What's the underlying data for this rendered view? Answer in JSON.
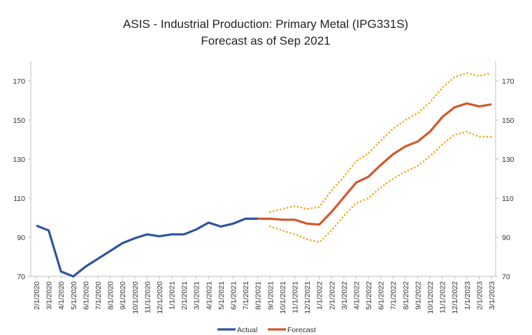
{
  "chart_data": {
    "type": "line",
    "title": "ASIS - Industrial Production: Primary Metal (IPG331S)",
    "subtitle": "Forecast as of Sep 2021",
    "xlabel": "",
    "ylabel": "",
    "ylim": [
      70,
      180
    ],
    "yticks": [
      70,
      90,
      110,
      130,
      150,
      170
    ],
    "grid": false,
    "dual_y_axis": true,
    "legend_position": "bottom",
    "categories": [
      "2/1/2020",
      "3/1/2020",
      "4/1/2020",
      "5/1/2020",
      "6/1/2020",
      "7/1/2020",
      "8/1/2020",
      "9/1/2020",
      "10/1/2020",
      "11/1/2020",
      "12/1/2020",
      "1/1/2021",
      "2/1/2021",
      "3/1/2021",
      "4/1/2021",
      "5/1/2021",
      "6/1/2021",
      "7/1/2021",
      "8/1/2021",
      "9/1/2021",
      "10/1/2021",
      "11/1/2021",
      "12/1/2021",
      "1/1/2022",
      "2/1/2022",
      "3/1/2022",
      "4/1/2022",
      "5/1/2022",
      "6/1/2022",
      "7/1/2022",
      "8/1/2022",
      "9/1/2022",
      "10/1/2022",
      "11/1/2022",
      "12/1/2022",
      "1/1/2023",
      "2/1/2023",
      "3/1/2023"
    ],
    "series": [
      {
        "name": "Actual",
        "color": "#2e54a0",
        "style": "solid",
        "values": [
          96,
          93.5,
          72.5,
          70,
          75,
          79,
          83,
          87,
          89.5,
          91.5,
          90.5,
          91.5,
          91.5,
          94,
          97.5,
          95.5,
          97,
          99.5,
          99.5,
          null,
          null,
          null,
          null,
          null,
          null,
          null,
          null,
          null,
          null,
          null,
          null,
          null,
          null,
          null,
          null,
          null,
          null,
          null
        ]
      },
      {
        "name": "Forecast",
        "color": "#d4572a",
        "style": "solid",
        "values": [
          null,
          null,
          null,
          null,
          null,
          null,
          null,
          null,
          null,
          null,
          null,
          null,
          null,
          null,
          null,
          null,
          null,
          null,
          99.5,
          99.5,
          99,
          99,
          97,
          96.5,
          103,
          110.5,
          118,
          121,
          127,
          132.5,
          136.5,
          139,
          144,
          151.5,
          156.5,
          158.5,
          157,
          158
        ]
      },
      {
        "name": "",
        "color": "#f2a81d",
        "style": "dotted",
        "values": [
          null,
          null,
          null,
          null,
          null,
          null,
          null,
          null,
          null,
          null,
          null,
          null,
          null,
          null,
          null,
          null,
          null,
          null,
          null,
          103,
          104.5,
          106,
          104.5,
          105.5,
          114,
          121,
          129,
          133,
          139.5,
          145.5,
          150,
          153.5,
          159,
          166.5,
          172,
          174,
          172.5,
          174
        ]
      },
      {
        "name": "",
        "color": "#f2a81d",
        "style": "dotted",
        "values": [
          null,
          null,
          null,
          null,
          null,
          null,
          null,
          null,
          null,
          null,
          null,
          null,
          null,
          null,
          null,
          null,
          null,
          null,
          null,
          95.5,
          93.5,
          91.5,
          89,
          87.5,
          93.5,
          101,
          107.5,
          110,
          115.5,
          120,
          123.5,
          126.5,
          131.5,
          137.5,
          142.5,
          144,
          141.5,
          141.5
        ]
      }
    ]
  }
}
